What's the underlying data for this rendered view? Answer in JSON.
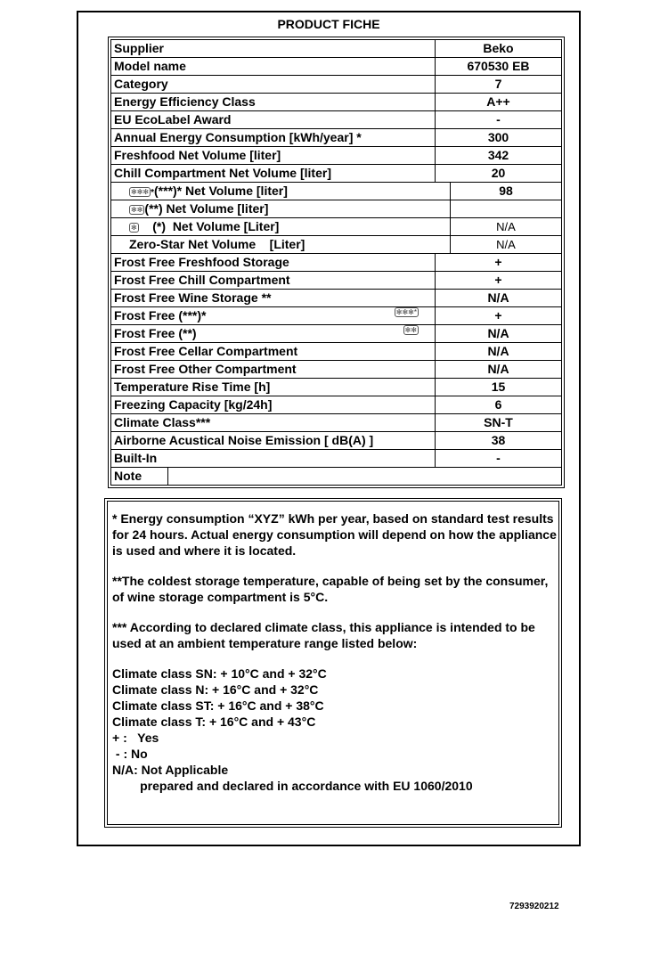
{
  "title": "PRODUCT FICHE",
  "rows": [
    {
      "label": "Supplier",
      "value": "Beko"
    },
    {
      "label": "Model name",
      "value": "670530 EB"
    },
    {
      "label": "Category",
      "value": "7"
    },
    {
      "label": "Energy Efficiency Class",
      "value": "A++"
    },
    {
      "label": "EU EcoLabel Award",
      "value": "-"
    },
    {
      "label": "Annual Energy Consumption [kWh/year] *",
      "value": "300"
    },
    {
      "label": "Freshfood Net Volume [liter]",
      "value": "342"
    },
    {
      "label": "Chill Compartment Net Volume [liter]",
      "value": "20"
    },
    {
      "label": "(***)* Net Volume [liter]",
      "value": "98",
      "icon": "four-star-icon"
    },
    {
      "label": "(**) Net Volume [liter]",
      "value": "",
      "icon": "two-star-icon"
    },
    {
      "label": "    (*)  Net Volume [Liter]",
      "value": "N/A",
      "icon": "one-star-icon"
    },
    {
      "label": "Zero-Star Net Volume    [Liter]",
      "value": "N/A"
    },
    {
      "label": "Frost Free Freshfood Storage",
      "value": "+"
    },
    {
      "label": "Frost Free Chill Compartment",
      "value": "+"
    },
    {
      "label": "Frost Free Wine Storage **",
      "value": "N/A"
    },
    {
      "label": "Frost Free (***)*",
      "value": "+",
      "icon": "four-star-icon"
    },
    {
      "label": "Frost Free (**)",
      "value": "N/A",
      "icon": "two-star-icon"
    },
    {
      "label": "Frost Free Cellar Compartment",
      "value": "N/A"
    },
    {
      "label": "Frost Free Other Compartment",
      "value": "N/A"
    },
    {
      "label": "Temperature Rise Time [h]",
      "value": "15"
    },
    {
      "label": "Freezing Capacity [kg/24h]",
      "value": "6"
    },
    {
      "label": "Climate Class***",
      "value": "SN-T"
    },
    {
      "label": "Airborne Acustical Noise Emission [ dB(A) ]",
      "value": "38"
    },
    {
      "label": "Built-In",
      "value": "-"
    },
    {
      "label": "Note",
      "value": ""
    }
  ],
  "notes": {
    "p1": "* Energy consumption “XYZ” kWh per year, based on standard test results for 24 hours. Actual energy consumption will depend on how the appliance is used and where it is located.",
    "p2": "**The coldest storage temperature, capable of being set by  the consumer, of wine storage compartment is 5°C.",
    "p3": "*** According to declared climate class, this appliance is intended to be used at an ambient temperature range listed below:",
    "lines": [
      "Climate class SN: + 10°C and + 32°C",
      "Climate class N: + 16°C and + 32°C",
      "Climate class ST: + 16°C and + 38°C",
      "Climate class T: + 16°C and + 43°C",
      "+ :   Yes",
      " - : No",
      "N/A: Not Applicable",
      "        prepared and declared in accordance with EU 1060/2010"
    ]
  },
  "code": "7293920212"
}
